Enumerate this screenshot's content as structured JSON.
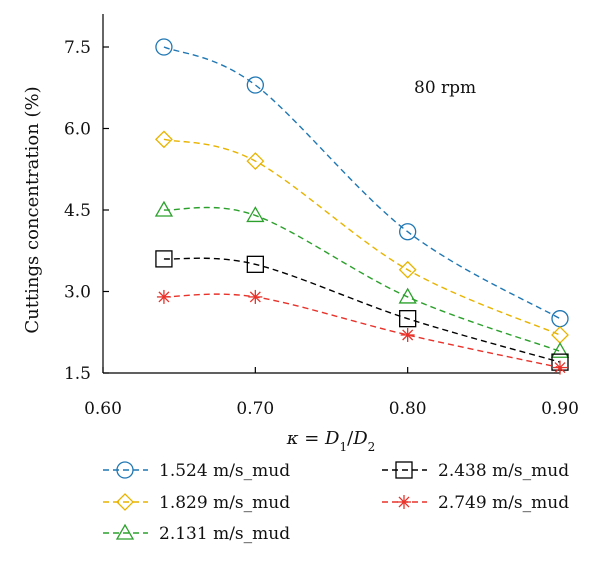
{
  "chart_data": {
    "type": "line",
    "x": [
      0.64,
      0.7,
      0.8,
      0.9
    ],
    "xlim": [
      0.6,
      0.9
    ],
    "ylim": [
      1.5,
      7.5
    ],
    "xticks": [
      "0.60",
      "0.70",
      "0.80",
      "0.90"
    ],
    "yticks": [
      "1.5",
      "3.0",
      "4.5",
      "6.0",
      "7.5"
    ],
    "ylabel": "Cuttings concentration (%)",
    "xlabel": "κ = D1/D2",
    "annotation": "80 rpm",
    "grid": false,
    "legend_position": "bottom",
    "series": [
      {
        "name": "1.524 m/s_mud",
        "color": "#1f77b4",
        "marker": "circle",
        "values": [
          7.5,
          6.8,
          4.1,
          2.5
        ]
      },
      {
        "name": "1.829 m/s_mud",
        "color": "#e8b400",
        "marker": "diamond",
        "values": [
          5.8,
          5.4,
          3.4,
          2.2
        ]
      },
      {
        "name": "2.131 m/s_mud",
        "color": "#2ca02c",
        "marker": "triangle",
        "values": [
          4.5,
          4.4,
          2.9,
          1.9
        ]
      },
      {
        "name": "2.438 m/s_mud",
        "color": "#000000",
        "marker": "square",
        "values": [
          3.6,
          3.5,
          2.5,
          1.7
        ]
      },
      {
        "name": "2.749 m/s_mud",
        "color": "#e8322a",
        "marker": "star",
        "values": [
          2.9,
          2.9,
          2.2,
          1.6
        ]
      }
    ]
  }
}
